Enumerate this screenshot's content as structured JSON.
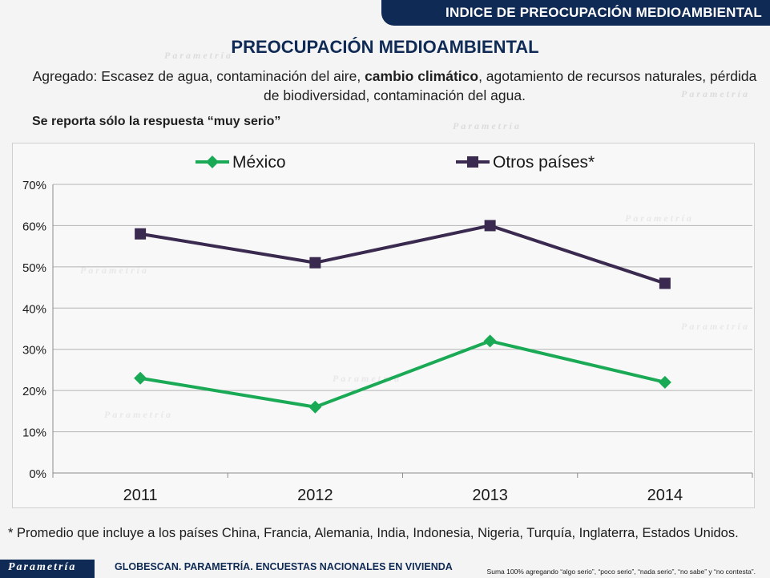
{
  "header": {
    "banner": "INDICE DE PREOCUPACIÓN MEDIOAMBIENTAL",
    "title": "PREOCUPACIÓN MEDIOAMBIENTAL",
    "subtitle_part1": "Agregado: Escasez de agua, contaminación del aire, ",
    "subtitle_bold": "cambio climático",
    "subtitle_part2": ", agotamiento de recursos naturales, pérdida de biodiversidad, contaminación del agua.",
    "note": "Se reporta sólo la respuesta “muy serio”"
  },
  "watermark": "Parametría",
  "chart_data": {
    "type": "line",
    "categories": [
      "2011",
      "2012",
      "2013",
      "2014"
    ],
    "series": [
      {
        "name": "México",
        "values": [
          23,
          16,
          32,
          22
        ],
        "color": "#1aaa55",
        "marker": "diamond"
      },
      {
        "name": "Otros países*",
        "values": [
          58,
          51,
          60,
          46
        ],
        "color": "#3b2a4f",
        "marker": "square"
      }
    ],
    "ylim": [
      0,
      70
    ],
    "yticks": [
      "0%",
      "10%",
      "20%",
      "30%",
      "40%",
      "50%",
      "60%",
      "70%"
    ],
    "grid": true,
    "legend": "top"
  },
  "footer": {
    "footnote": "* Promedio que incluye a los países China, Francia, Alemania, India, Indonesia, Nigeria, Turquía, Inglaterra, Estados Unidos.",
    "logo": "Parametría",
    "source": "GLOBESCAN. PARAMETRÍA. ENCUESTAS NACIONALES EN VIVIENDA",
    "sum_note": "Suma 100%  agregando “algo serio”, “poco serio”, “nada serio”, “no sabe” y “no contesta”."
  }
}
